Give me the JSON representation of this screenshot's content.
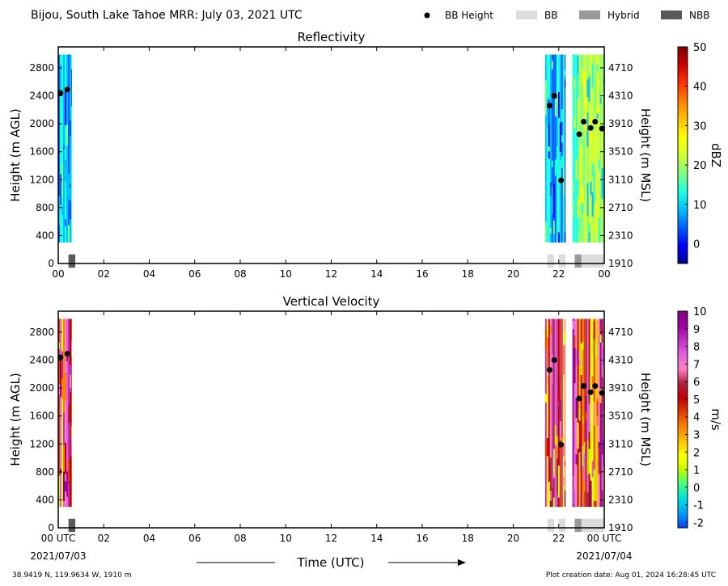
{
  "header": {
    "title": "Bijou, South Lake Tahoe MRR:  July 03, 2021 UTC"
  },
  "legend": {
    "items": [
      {
        "label": "BB Height",
        "kind": "dot",
        "color": "#000000"
      },
      {
        "label": "BB",
        "kind": "patch",
        "color": "#dcdcdc"
      },
      {
        "label": "Hybrid",
        "kind": "patch",
        "color": "#999999"
      },
      {
        "label": "NBB",
        "kind": "patch",
        "color": "#5a5a5a"
      }
    ]
  },
  "footer": {
    "location": "38.9419 N, 119.9634 W, 1910 m",
    "created": "Plot creation date: Aug 01, 2024 16:28:45 UTC",
    "xlabel": "Time (UTC)",
    "start_date": "2021/07/03",
    "end_date": "2021/07/04"
  },
  "colors": {
    "reflectivity_scale": [
      "#00008f",
      "#0000ff",
      "#0060ff",
      "#00c0ff",
      "#20ffe0",
      "#80ff80",
      "#d0ff30",
      "#ffff00",
      "#ffc000",
      "#ff8000",
      "#ff3000",
      "#d00000",
      "#800000"
    ],
    "velocity_scale": [
      "#0040ff",
      "#00a0ff",
      "#00e0e0",
      "#40ff80",
      "#c0ff00",
      "#ffff00",
      "#ffc000",
      "#ff8000",
      "#e04000",
      "#c00000",
      "#b02040",
      "#ff80c0",
      "#e060e0",
      "#c030c0",
      "#a000a0",
      "#800080"
    ]
  },
  "chart_data": [
    {
      "type": "heatmap",
      "title": "Reflectivity",
      "xlabel": "",
      "ylabel": "Height (m AGL)",
      "ylabel_right": "Height (m MSL)",
      "xticks": [
        "00",
        "02",
        "04",
        "06",
        "08",
        "10",
        "12",
        "14",
        "16",
        "18",
        "20",
        "22",
        "00"
      ],
      "xlim_hours": [
        0,
        24
      ],
      "yticks": [
        0,
        400,
        800,
        1200,
        1600,
        2000,
        2400,
        2800
      ],
      "ylim": [
        0,
        3100
      ],
      "yticks_right": [
        "1910",
        "2310",
        "2710",
        "3110",
        "3510",
        "3910",
        "4310",
        "4710"
      ],
      "colorbar": {
        "label": "dBZ",
        "min": -5,
        "max": 50,
        "ticks": [
          0,
          10,
          20,
          30,
          40,
          50
        ]
      },
      "data_blocks": [
        {
          "x_start": 0.0,
          "x_end": 0.6,
          "level": "low"
        },
        {
          "x_start": 21.4,
          "x_end": 22.3,
          "level": "low"
        },
        {
          "x_start": 22.6,
          "x_end": 24.0,
          "level": "mid"
        }
      ],
      "bb_height": {
        "x": [
          0.1,
          0.4,
          21.6,
          21.8,
          22.1,
          22.9,
          23.1,
          23.4,
          23.6,
          23.9
        ],
        "y": [
          2440,
          2490,
          2260,
          2400,
          1190,
          1850,
          2030,
          1940,
          2030,
          1930
        ]
      },
      "bb_type_bars": [
        {
          "x_start": 0.45,
          "x_end": 0.75,
          "type": "NBB"
        },
        {
          "x_start": 21.5,
          "x_end": 21.8,
          "type": "BB"
        },
        {
          "x_start": 22.0,
          "x_end": 22.3,
          "type": "BB"
        },
        {
          "x_start": 22.7,
          "x_end": 23.0,
          "type": "Hybrid"
        },
        {
          "x_start": 23.0,
          "x_end": 24.0,
          "type": "BB"
        }
      ]
    },
    {
      "type": "heatmap",
      "title": "Vertical Velocity",
      "xlabel": "Time (UTC)",
      "ylabel": "Height (m AGL)",
      "ylabel_right": "Height (m MSL)",
      "xticks": [
        "00 UTC",
        "02",
        "04",
        "06",
        "08",
        "10",
        "12",
        "14",
        "16",
        "18",
        "20",
        "22",
        "00 UTC"
      ],
      "xlim_hours": [
        0,
        24
      ],
      "yticks": [
        0,
        400,
        800,
        1200,
        1600,
        2000,
        2400,
        2800
      ],
      "ylim": [
        0,
        3100
      ],
      "yticks_right": [
        "1910",
        "2310",
        "2710",
        "3110",
        "3510",
        "3910",
        "4310",
        "4710"
      ],
      "colorbar": {
        "label": "m/s",
        "min": -2.3,
        "max": 10,
        "ticks": [
          -2,
          -1,
          0,
          1,
          2,
          3,
          4,
          5,
          6,
          7,
          8,
          9,
          10
        ]
      },
      "data_blocks": [
        {
          "x_start": 0.0,
          "x_end": 0.6,
          "level": "high"
        },
        {
          "x_start": 21.4,
          "x_end": 22.3,
          "level": "high"
        },
        {
          "x_start": 22.6,
          "x_end": 24.0,
          "level": "high"
        }
      ],
      "bb_height": {
        "x": [
          0.1,
          0.4,
          21.6,
          21.8,
          22.1,
          22.9,
          23.1,
          23.4,
          23.6,
          23.9
        ],
        "y": [
          2440,
          2490,
          2260,
          2400,
          1190,
          1850,
          2030,
          1940,
          2030,
          1930
        ]
      },
      "bb_type_bars": [
        {
          "x_start": 0.45,
          "x_end": 0.75,
          "type": "NBB"
        },
        {
          "x_start": 21.5,
          "x_end": 21.8,
          "type": "BB"
        },
        {
          "x_start": 22.0,
          "x_end": 22.3,
          "type": "BB"
        },
        {
          "x_start": 22.7,
          "x_end": 23.0,
          "type": "Hybrid"
        },
        {
          "x_start": 23.0,
          "x_end": 24.0,
          "type": "BB"
        }
      ]
    }
  ]
}
